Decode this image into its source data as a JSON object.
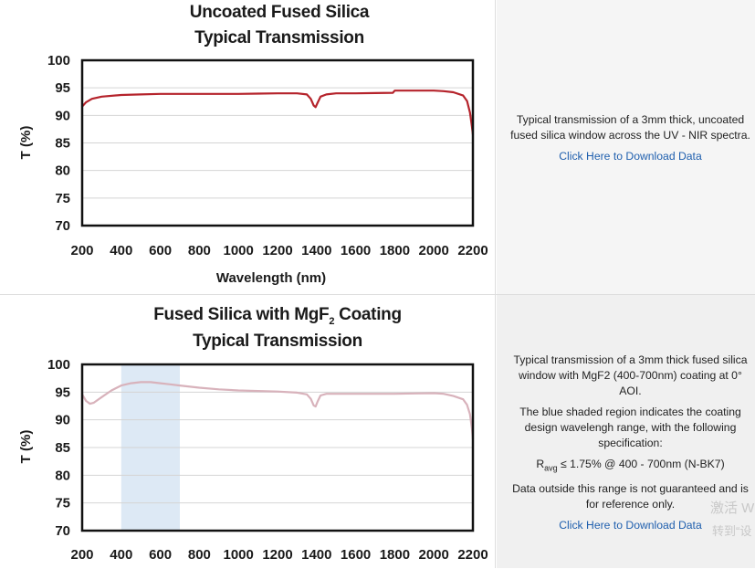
{
  "charts": [
    {
      "title_line1": "Uncoated Fused Silica",
      "title_line2": "Typical Transmission",
      "description": "Typical transmission of a 3mm thick, uncoated fused silica window across the UV - NIR spectra.",
      "link_label": "Click Here to Download Data"
    },
    {
      "title_line1_pre": "Fused Silica with MgF",
      "title_line1_sub": "2",
      "title_line1_post": " Coating",
      "title_line2": "Typical Transmission",
      "description": "Typical transmission of a 3mm thick fused silica window with MgF2 (400-700nm) coating at 0° AOI.",
      "note": "The blue shaded region indicates the coating design wavelengh range, with the following specification:",
      "spec_r": "R",
      "spec_sub": "avg",
      "spec_rest": " ≤ 1.75% @ 400 - 700nm (N-BK7)",
      "disclaimer": "Data outside this range is not guaranteed and is for reference only.",
      "link_label": "Click Here to Download Data"
    }
  ],
  "watermark": {
    "line1": "激活 W",
    "line2": "转到“设"
  },
  "chart_data": [
    {
      "type": "line",
      "title": "Uncoated Fused Silica Typical Transmission",
      "xlabel": "Wavelength (nm)",
      "ylabel": "T (%)",
      "xlim": [
        200,
        2200
      ],
      "ylim": [
        70,
        100
      ],
      "xticks": [
        200,
        400,
        600,
        800,
        1000,
        1200,
        1400,
        1600,
        1800,
        2000,
        2200
      ],
      "yticks": [
        70,
        75,
        80,
        85,
        90,
        95,
        100
      ],
      "grid": true,
      "color": "#b5232b",
      "series": [
        {
          "x": [
            200,
            220,
            250,
            300,
            400,
            500,
            600,
            700,
            800,
            900,
            1000,
            1100,
            1200,
            1300,
            1350,
            1370,
            1385,
            1395,
            1405,
            1420,
            1450,
            1500,
            1600,
            1700,
            1790,
            1800,
            1900,
            2000,
            2050,
            2100,
            2150,
            2170,
            2185,
            2195,
            2200
          ],
          "y": [
            91.6,
            92.4,
            93.0,
            93.4,
            93.7,
            93.8,
            93.9,
            93.9,
            93.9,
            93.9,
            93.9,
            93.95,
            94.0,
            94.0,
            93.8,
            93.0,
            91.8,
            91.5,
            92.3,
            93.4,
            93.8,
            94.0,
            94.0,
            94.05,
            94.1,
            94.5,
            94.5,
            94.5,
            94.4,
            94.2,
            93.6,
            92.6,
            90.5,
            88.0,
            86.5
          ]
        }
      ]
    },
    {
      "type": "line",
      "title": "Fused Silica with MgF2 Coating Typical Transmission",
      "xlabel": "",
      "ylabel": "T (%)",
      "xlim": [
        200,
        2200
      ],
      "ylim": [
        70,
        100
      ],
      "xticks": [
        200,
        400,
        600,
        800,
        1000,
        1200,
        1400,
        1600,
        1800,
        2000,
        2200
      ],
      "yticks": [
        70,
        75,
        80,
        85,
        90,
        95,
        100
      ],
      "grid": true,
      "color": "#d8b2bb",
      "shaded_region": {
        "x": [
          400,
          700
        ],
        "color": "#dde9f5"
      },
      "series": [
        {
          "x": [
            200,
            220,
            240,
            260,
            300,
            350,
            400,
            450,
            500,
            550,
            600,
            650,
            700,
            800,
            900,
            1000,
            1100,
            1200,
            1300,
            1350,
            1370,
            1385,
            1395,
            1405,
            1420,
            1450,
            1500,
            1600,
            1700,
            1800,
            1900,
            2000,
            2050,
            2100,
            2150,
            2170,
            2185,
            2195,
            2200
          ],
          "y": [
            94.6,
            93.4,
            92.9,
            93.1,
            94.1,
            95.3,
            96.2,
            96.6,
            96.8,
            96.8,
            96.6,
            96.4,
            96.2,
            95.8,
            95.5,
            95.3,
            95.2,
            95.1,
            94.9,
            94.6,
            93.8,
            92.6,
            92.4,
            93.3,
            94.4,
            94.7,
            94.7,
            94.7,
            94.7,
            94.7,
            94.75,
            94.8,
            94.7,
            94.3,
            93.7,
            92.7,
            91.0,
            88.5,
            86.5
          ]
        }
      ]
    }
  ]
}
